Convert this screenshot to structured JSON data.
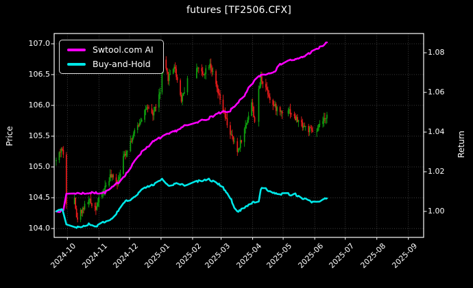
{
  "title": "futures [TF2506.CFX]",
  "palette": {
    "background": "#000000",
    "text": "#ffffff",
    "grid_line": "#ffffff",
    "grid_opacity": 0.32,
    "axis_frame": "#ffffff"
  },
  "axes": {
    "price": {
      "label": "Price"
    },
    "return": {
      "label": "Return"
    }
  },
  "chart_data": {
    "type": "candlestick_with_lines",
    "title": "futures [TF2506.CFX]",
    "grid": true,
    "legend_position": "upper-left",
    "x_axis": {
      "start": "2024-09-18",
      "end": "2025-09-16",
      "ticks": [
        {
          "label": "2024-10",
          "date": "2024-10-01"
        },
        {
          "label": "2024-11",
          "date": "2024-11-01"
        },
        {
          "label": "2024-12",
          "date": "2024-12-01"
        },
        {
          "label": "2025-01",
          "date": "2025-01-01"
        },
        {
          "label": "2025-02",
          "date": "2025-02-01"
        },
        {
          "label": "2025-03",
          "date": "2025-03-01"
        },
        {
          "label": "2025-04",
          "date": "2025-04-01"
        },
        {
          "label": "2025-05",
          "date": "2025-05-01"
        },
        {
          "label": "2025-06",
          "date": "2025-06-01"
        },
        {
          "label": "2025-07",
          "date": "2025-07-01"
        },
        {
          "label": "2025-08",
          "date": "2025-08-01"
        },
        {
          "label": "2025-09",
          "date": "2025-09-01"
        }
      ]
    },
    "left_axis": {
      "label": "Price",
      "range": [
        103.856,
        107.167
      ],
      "ticks": [
        {
          "label": "104.0",
          "value": 104.0
        },
        {
          "label": "104.5",
          "value": 104.5
        },
        {
          "label": "105.0",
          "value": 105.0
        },
        {
          "label": "105.5",
          "value": 105.5
        },
        {
          "label": "106.0",
          "value": 106.0
        },
        {
          "label": "106.5",
          "value": 106.5
        },
        {
          "label": "107.0",
          "value": 107.0
        }
      ]
    },
    "right_axis": {
      "label": "Return",
      "range": [
        0.9869,
        1.0897
      ],
      "ticks": [
        {
          "label": "1.00",
          "value": 1.0
        },
        {
          "label": "1.02",
          "value": 1.02
        },
        {
          "label": "1.04",
          "value": 1.04
        },
        {
          "label": "1.06",
          "value": 1.06
        },
        {
          "label": "1.08",
          "value": 1.08
        }
      ]
    },
    "market_closures": [
      [
        "2024-10-01",
        "2024-10-07"
      ],
      [
        "2025-01-01",
        "2025-01-01"
      ],
      [
        "2025-01-28",
        "2025-02-04"
      ],
      [
        "2025-04-04",
        "2025-04-04"
      ],
      [
        "2025-05-01",
        "2025-05-05"
      ],
      [
        "2025-06-02",
        "2025-06-02"
      ]
    ],
    "series": [
      {
        "name": "TF2506.CFX daily OHLC",
        "type": "candlestick",
        "axis": "left",
        "up_color": "#0fa40f",
        "down_color": "#ee1c1c",
        "close_anchors": [
          [
            "2024-09-20",
            105.1
          ],
          [
            "2024-09-25",
            105.3
          ],
          [
            "2024-09-27",
            105.2
          ],
          [
            "2024-09-30",
            104.45
          ],
          [
            "2024-10-08",
            104.55
          ],
          [
            "2024-10-10",
            104.15
          ],
          [
            "2024-10-15",
            104.3
          ],
          [
            "2024-10-22",
            104.45
          ],
          [
            "2024-10-29",
            104.35
          ],
          [
            "2024-11-05",
            104.6
          ],
          [
            "2024-11-12",
            104.85
          ],
          [
            "2024-11-19",
            104.75
          ],
          [
            "2024-11-26",
            105.2
          ],
          [
            "2024-12-03",
            105.45
          ],
          [
            "2024-12-10",
            105.7
          ],
          [
            "2024-12-17",
            105.95
          ],
          [
            "2024-12-24",
            105.85
          ],
          [
            "2024-12-31",
            106.2
          ],
          [
            "2025-01-03",
            106.7
          ],
          [
            "2025-01-08",
            106.45
          ],
          [
            "2025-01-14",
            106.65
          ],
          [
            "2025-01-21",
            106.1
          ],
          [
            "2025-01-27",
            106.4
          ],
          [
            "2025-02-05",
            106.65
          ],
          [
            "2025-02-11",
            106.5
          ],
          [
            "2025-02-18",
            106.7
          ],
          [
            "2025-02-25",
            106.25
          ],
          [
            "2025-03-04",
            105.85
          ],
          [
            "2025-03-11",
            105.5
          ],
          [
            "2025-03-17",
            105.25
          ],
          [
            "2025-03-24",
            105.6
          ],
          [
            "2025-03-31",
            106.05
          ],
          [
            "2025-04-03",
            105.75
          ],
          [
            "2025-04-09",
            106.45
          ],
          [
            "2025-04-14",
            106.3
          ],
          [
            "2025-04-21",
            106.0
          ],
          [
            "2025-04-28",
            105.9
          ],
          [
            "2025-05-06",
            105.95
          ],
          [
            "2025-05-12",
            105.8
          ],
          [
            "2025-05-19",
            105.7
          ],
          [
            "2025-05-26",
            105.6
          ],
          [
            "2025-06-03",
            105.55
          ],
          [
            "2025-06-06",
            105.7
          ],
          [
            "2025-06-11",
            105.75
          ],
          [
            "2025-06-13",
            105.9
          ]
        ]
      },
      {
        "name": "Swtool.com AI",
        "type": "line",
        "axis": "right",
        "color": "#ff00ff",
        "points": [
          [
            "2024-09-20",
            1.0
          ],
          [
            "2024-09-27",
            1.0005
          ],
          [
            "2024-09-30",
            1.009
          ],
          [
            "2024-10-20",
            1.0092
          ],
          [
            "2024-11-07",
            1.0095
          ],
          [
            "2024-11-14",
            1.012
          ],
          [
            "2024-11-21",
            1.015
          ],
          [
            "2024-12-01",
            1.021
          ],
          [
            "2024-12-08",
            1.027
          ],
          [
            "2024-12-15",
            1.031
          ],
          [
            "2024-12-24",
            1.035
          ],
          [
            "2025-01-03",
            1.038
          ],
          [
            "2025-01-10",
            1.0392
          ],
          [
            "2025-01-17",
            1.041
          ],
          [
            "2025-01-24",
            1.043
          ],
          [
            "2025-02-05",
            1.0445
          ],
          [
            "2025-02-10",
            1.046
          ],
          [
            "2025-02-17",
            1.047
          ],
          [
            "2025-02-24",
            1.049
          ],
          [
            "2025-03-04",
            1.0502
          ],
          [
            "2025-03-08",
            1.0496
          ],
          [
            "2025-03-12",
            1.052
          ],
          [
            "2025-03-18",
            1.0552
          ],
          [
            "2025-03-24",
            1.058
          ],
          [
            "2025-03-28",
            1.062
          ],
          [
            "2025-04-03",
            1.066
          ],
          [
            "2025-04-09",
            1.0688
          ],
          [
            "2025-04-16",
            1.0695
          ],
          [
            "2025-04-23",
            1.071
          ],
          [
            "2025-04-29",
            1.0745
          ],
          [
            "2025-05-06",
            1.0762
          ],
          [
            "2025-05-14",
            1.0766
          ],
          [
            "2025-05-21",
            1.078
          ],
          [
            "2025-05-28",
            1.0802
          ],
          [
            "2025-06-04",
            1.082
          ],
          [
            "2025-06-10",
            1.084
          ],
          [
            "2025-06-13",
            1.0852
          ]
        ]
      },
      {
        "name": "Buy-and-Hold",
        "type": "line",
        "axis": "right",
        "color": "#00e8e8",
        "points": [
          [
            "2024-09-20",
            1.0
          ],
          [
            "2024-09-26",
            1.0012
          ],
          [
            "2024-09-30",
            0.9938
          ],
          [
            "2024-10-09",
            0.9916
          ],
          [
            "2024-10-16",
            0.9926
          ],
          [
            "2024-10-23",
            0.9936
          ],
          [
            "2024-10-30",
            0.9925
          ],
          [
            "2024-11-06",
            0.9946
          ],
          [
            "2024-11-13",
            0.9962
          ],
          [
            "2024-11-20",
            1.0002
          ],
          [
            "2024-11-27",
            1.0051
          ],
          [
            "2024-12-04",
            1.0066
          ],
          [
            "2024-12-11",
            1.01
          ],
          [
            "2024-12-18",
            1.0122
          ],
          [
            "2024-12-26",
            1.014
          ],
          [
            "2025-01-02",
            1.016
          ],
          [
            "2025-01-09",
            1.0124
          ],
          [
            "2025-01-16",
            1.0146
          ],
          [
            "2025-01-23",
            1.013
          ],
          [
            "2025-02-05",
            1.015
          ],
          [
            "2025-02-10",
            1.0156
          ],
          [
            "2025-02-17",
            1.016
          ],
          [
            "2025-02-24",
            1.0146
          ],
          [
            "2025-03-03",
            1.012
          ],
          [
            "2025-03-10",
            1.007
          ],
          [
            "2025-03-14",
            1.002
          ],
          [
            "2025-03-18",
            1.0
          ],
          [
            "2025-03-24",
            1.0022
          ],
          [
            "2025-03-31",
            1.0042
          ],
          [
            "2025-04-07",
            1.0052
          ],
          [
            "2025-04-09",
            1.011
          ],
          [
            "2025-04-10",
            1.0124
          ],
          [
            "2025-04-15",
            1.011
          ],
          [
            "2025-04-22",
            1.009
          ],
          [
            "2025-04-28",
            1.0085
          ],
          [
            "2025-05-06",
            1.0096
          ],
          [
            "2025-05-08",
            1.008
          ],
          [
            "2025-05-12",
            1.009
          ],
          [
            "2025-05-16",
            1.0076
          ],
          [
            "2025-05-23",
            1.006
          ],
          [
            "2025-05-30",
            1.0046
          ],
          [
            "2025-06-06",
            1.005
          ],
          [
            "2025-06-13",
            1.0066
          ]
        ]
      }
    ]
  }
}
